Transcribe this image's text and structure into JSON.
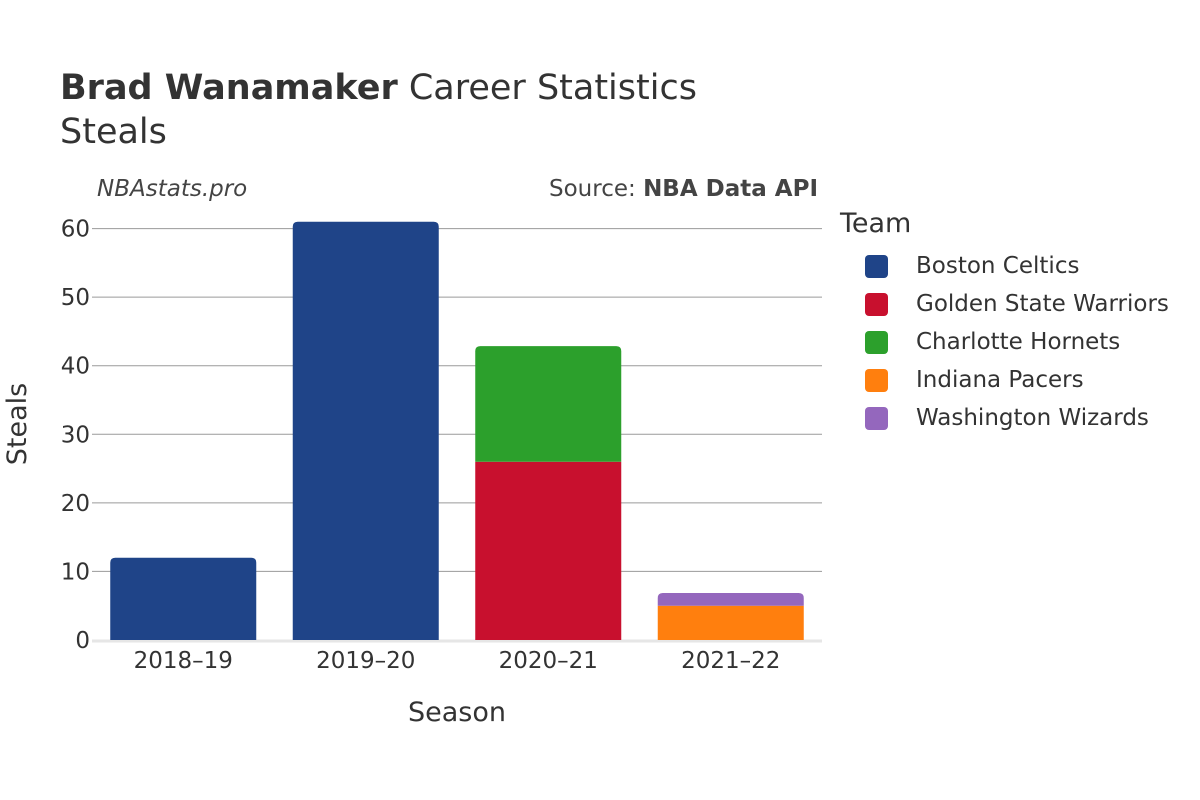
{
  "header": {
    "title_bold": "Brad Wanamaker",
    "title_rest": " Career Statistics",
    "subtitle": "Steals",
    "watermark": "NBAstats.pro",
    "source_prefix": "Source: ",
    "source_name": "NBA Data API"
  },
  "legend": {
    "title": "Team",
    "items": [
      {
        "label": "Boston Celtics",
        "color": "#1f4488"
      },
      {
        "label": "Golden State Warriors",
        "color": "#c8102e"
      },
      {
        "label": "Charlotte Hornets",
        "color": "#2ca02c"
      },
      {
        "label": "Indiana Pacers",
        "color": "#ff7f0e"
      },
      {
        "label": "Washington Wizards",
        "color": "#9467bd"
      }
    ]
  },
  "chart_data": {
    "type": "bar",
    "stacked": true,
    "title": "Brad Wanamaker Career Statistics",
    "subtitle": "Steals",
    "xlabel": "Season",
    "ylabel": "Steals",
    "ylim": [
      0,
      63
    ],
    "yticks": [
      0,
      10,
      20,
      30,
      40,
      50,
      60
    ],
    "categories": [
      "2018–19",
      "2019–20",
      "2020–21",
      "2021–22"
    ],
    "grid": true,
    "legend_position": "right",
    "series": [
      {
        "name": "Boston Celtics",
        "color": "#1f4488",
        "values": [
          12,
          61,
          0,
          0
        ]
      },
      {
        "name": "Golden State Warriors",
        "color": "#c8102e",
        "values": [
          0,
          0,
          26,
          0
        ]
      },
      {
        "name": "Charlotte Hornets",
        "color": "#2ca02c",
        "values": [
          0,
          0,
          17,
          0
        ]
      },
      {
        "name": "Indiana Pacers",
        "color": "#ff7f0e",
        "values": [
          0,
          0,
          0,
          5
        ]
      },
      {
        "name": "Washington Wizards",
        "color": "#9467bd",
        "values": [
          0,
          0,
          0,
          2
        ]
      }
    ]
  }
}
